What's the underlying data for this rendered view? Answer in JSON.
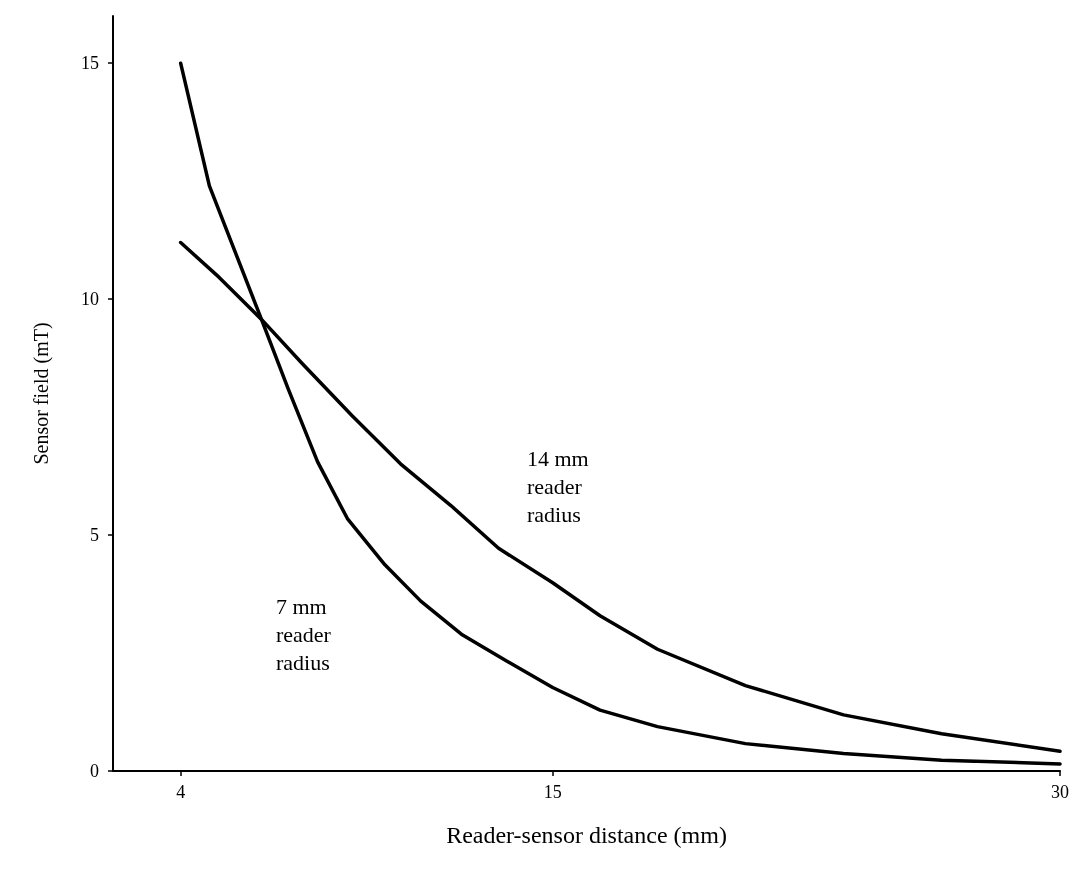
{
  "chart_data": {
    "type": "line",
    "xlabel": "Reader-sensor distance (mm)",
    "ylabel": "Sensor field (mT)",
    "xlim": [
      2,
      30
    ],
    "xticks": [
      4,
      15,
      30
    ],
    "ylim": [
      0,
      16
    ],
    "yticks": [
      0,
      5,
      10,
      15
    ],
    "grid": false,
    "marker": "none",
    "line_style": "solid",
    "series": [
      {
        "color": "#000000",
        "x": [
          4,
          4.85,
          6.39,
          7.18,
          8.05,
          8.93,
          10.04,
          11.1,
          12.3,
          13.4,
          15,
          16.4,
          18.1,
          20.7,
          23.6,
          26.5,
          30
        ],
        "values": [
          15,
          12.4,
          9.57,
          8.1,
          6.55,
          5.35,
          4.37,
          3.6,
          2.9,
          2.43,
          1.77,
          1.29,
          0.94,
          0.58,
          0.37,
          0.23,
          0.15
        ]
      },
      {
        "color": "#000000",
        "x": [
          4,
          5.14,
          6.39,
          7.6,
          9.07,
          10.5,
          12.0,
          13.4,
          15,
          16.4,
          18.1,
          20.7,
          23.6,
          26.5,
          30
        ],
        "values": [
          11.2,
          10.46,
          9.57,
          8.63,
          7.53,
          6.51,
          5.62,
          4.72,
          3.99,
          3.29,
          2.58,
          1.81,
          1.19,
          0.79,
          0.42
        ]
      }
    ],
    "annotations": [
      "14 mm\nreader\nradius",
      "7 mm\nreader\nradius"
    ]
  }
}
